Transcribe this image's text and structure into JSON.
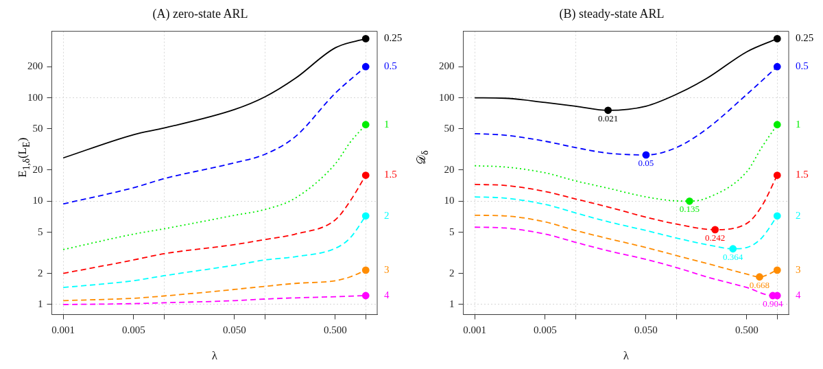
{
  "chart_data": [
    {
      "type": "line",
      "title": "(A) zero-state ARL",
      "xlabel": "λ",
      "ylabel": "E$_{1,δ}$(L$_{E}$)",
      "log": "xy",
      "grid": true,
      "legend": false,
      "xlim": [
        0.00077,
        1.3
      ],
      "ylim": [
        0.8,
        440
      ],
      "xticks": [
        {
          "value": 0.001,
          "label": "0.001"
        },
        {
          "value": 0.005,
          "label": "0.005"
        },
        {
          "value": 0.01,
          "label": null
        },
        {
          "value": 0.05,
          "label": "0.050"
        },
        {
          "value": 0.1,
          "label": null
        },
        {
          "value": 0.5,
          "label": "0.500"
        },
        {
          "value": 1,
          "label": null
        }
      ],
      "yticks": [
        1,
        2,
        5,
        10,
        20,
        50,
        100,
        200
      ],
      "series": [
        {
          "name": "0.25",
          "color": "#000000",
          "line_style": "solid",
          "marker": "none",
          "x": [
            0.001,
            0.005,
            0.01,
            0.05,
            0.1,
            0.2,
            0.5,
            1
          ],
          "values": [
            26.2,
            44,
            51,
            77,
            102,
            154,
            305,
            373
          ]
        },
        {
          "name": "0.5",
          "color": "#0000ff",
          "line_style": "dashed",
          "marker": "none",
          "x": [
            0.001,
            0.005,
            0.01,
            0.05,
            0.1,
            0.2,
            0.5,
            1
          ],
          "values": [
            9.4,
            13.5,
            16.5,
            23.5,
            28.4,
            42,
            111,
            200
          ]
        },
        {
          "name": "1",
          "color": "#00ee00",
          "line_style": "dotted",
          "marker": "none",
          "x": [
            0.001,
            0.005,
            0.01,
            0.05,
            0.1,
            0.2,
            0.5,
            0.7,
            1
          ],
          "values": [
            3.4,
            4.8,
            5.4,
            7.3,
            8.3,
            10.7,
            23,
            37,
            55
          ]
        },
        {
          "name": "1.5",
          "color": "#ff0000",
          "line_style": "dashed",
          "marker": "none",
          "x": [
            0.001,
            0.005,
            0.01,
            0.05,
            0.1,
            0.2,
            0.5,
            0.7,
            1
          ],
          "values": [
            2.0,
            2.7,
            3.1,
            3.8,
            4.25,
            4.8,
            6.6,
            10,
            17.8
          ]
        },
        {
          "name": "2",
          "color": "#00ffff",
          "line_style": "dashed",
          "marker": "none",
          "x": [
            0.001,
            0.005,
            0.01,
            0.05,
            0.1,
            0.2,
            0.5,
            0.7,
            1
          ],
          "values": [
            1.46,
            1.7,
            1.9,
            2.4,
            2.7,
            2.9,
            3.5,
            4.4,
            7.2
          ]
        },
        {
          "name": "3",
          "color": "#ff8c00",
          "line_style": "dashed",
          "marker": "none",
          "x": [
            0.001,
            0.005,
            0.01,
            0.05,
            0.1,
            0.2,
            0.5,
            0.7,
            1
          ],
          "values": [
            1.09,
            1.15,
            1.21,
            1.4,
            1.5,
            1.6,
            1.7,
            1.85,
            2.15
          ]
        },
        {
          "name": "4",
          "color": "#ff00ff",
          "line_style": "dashed",
          "marker": "none",
          "x": [
            0.001,
            0.005,
            0.01,
            0.05,
            0.1,
            0.2,
            0.5,
            1
          ],
          "values": [
            1.0,
            1.02,
            1.04,
            1.09,
            1.13,
            1.16,
            1.19,
            1.22
          ]
        },
        {
          "type": "scatter",
          "color": "#000000",
          "marker": "circle",
          "x": [
            1
          ],
          "values": [
            373
          ]
        },
        {
          "type": "scatter",
          "color": "#0000ff",
          "marker": "circle",
          "x": [
            1
          ],
          "values": [
            200
          ]
        },
        {
          "type": "scatter",
          "color": "#00ee00",
          "marker": "circle",
          "x": [
            1
          ],
          "values": [
            55
          ]
        },
        {
          "type": "scatter",
          "color": "#ff0000",
          "marker": "circle",
          "x": [
            1
          ],
          "values": [
            17.8
          ]
        },
        {
          "type": "scatter",
          "color": "#00ffff",
          "marker": "circle",
          "x": [
            1
          ],
          "values": [
            7.2
          ]
        },
        {
          "type": "scatter",
          "color": "#ff8c00",
          "marker": "circle",
          "x": [
            1
          ],
          "values": [
            2.15
          ]
        },
        {
          "type": "scatter",
          "color": "#ff00ff",
          "marker": "circle",
          "x": [
            1
          ],
          "values": [
            1.22
          ]
        }
      ]
    },
    {
      "type": "line",
      "title": "(B) steady-state ARL",
      "xlabel": "λ",
      "ylabel": "𝒟$_{δ}$",
      "log": "xy",
      "grid": true,
      "legend": false,
      "xlim": [
        0.00077,
        1.3
      ],
      "ylim": [
        0.8,
        440
      ],
      "xticks": [
        {
          "value": 0.001,
          "label": "0.001"
        },
        {
          "value": 0.005,
          "label": "0.005"
        },
        {
          "value": 0.01,
          "label": null
        },
        {
          "value": 0.05,
          "label": "0.050"
        },
        {
          "value": 0.1,
          "label": null
        },
        {
          "value": 0.5,
          "label": "0.500"
        },
        {
          "value": 1,
          "label": null
        }
      ],
      "yticks": [
        1,
        2,
        5,
        10,
        20,
        50,
        100,
        200
      ],
      "series": [
        {
          "name": "0.25",
          "color": "#000000",
          "line_style": "solid",
          "marker": "none",
          "x": [
            0.001,
            0.002,
            0.005,
            0.01,
            0.021,
            0.05,
            0.1,
            0.2,
            0.5,
            1
          ],
          "values": [
            100,
            99,
            90,
            83,
            75.7,
            83,
            108,
            154,
            279,
            373
          ]
        },
        {
          "name": "0.5",
          "color": "#0000ff",
          "line_style": "dashed",
          "marker": "none",
          "x": [
            0.001,
            0.002,
            0.005,
            0.01,
            0.02,
            0.05,
            0.1,
            0.2,
            0.5,
            1
          ],
          "values": [
            45,
            43.5,
            38,
            33,
            29.3,
            28,
            33,
            50,
            108,
            200
          ]
        },
        {
          "name": "1",
          "color": "#00ee00",
          "line_style": "dotted",
          "marker": "none",
          "x": [
            0.001,
            0.002,
            0.005,
            0.01,
            0.02,
            0.05,
            0.1,
            0.135,
            0.2,
            0.5,
            0.7,
            1
          ],
          "values": [
            22,
            21.4,
            18.8,
            15.7,
            13.5,
            11,
            10.05,
            10,
            10.7,
            19.3,
            33,
            55
          ]
        },
        {
          "name": "1.5",
          "color": "#ff0000",
          "line_style": "dashed",
          "marker": "none",
          "x": [
            0.001,
            0.002,
            0.005,
            0.01,
            0.02,
            0.05,
            0.1,
            0.242,
            0.5,
            0.7,
            1
          ],
          "values": [
            14.5,
            14.2,
            12.4,
            10.5,
            8.9,
            7.0,
            6.0,
            5.3,
            6.1,
            8.9,
            17.8
          ]
        },
        {
          "name": "2",
          "color": "#00ffff",
          "line_style": "dashed",
          "marker": "none",
          "x": [
            0.001,
            0.002,
            0.005,
            0.01,
            0.02,
            0.05,
            0.1,
            0.2,
            0.364,
            0.5,
            0.7,
            1
          ],
          "values": [
            11,
            10.7,
            9.3,
            7.7,
            6.4,
            5.2,
            4.4,
            3.8,
            3.46,
            3.56,
            4.4,
            7.2
          ]
        },
        {
          "name": "3",
          "color": "#ff8c00",
          "line_style": "dashed",
          "marker": "none",
          "x": [
            0.001,
            0.002,
            0.005,
            0.01,
            0.02,
            0.05,
            0.1,
            0.2,
            0.5,
            0.668,
            1
          ],
          "values": [
            7.3,
            7.2,
            6.3,
            5.2,
            4.4,
            3.56,
            2.98,
            2.5,
            1.97,
            1.85,
            2.15
          ]
        },
        {
          "name": "4",
          "color": "#ff00ff",
          "line_style": "dashed",
          "marker": "none",
          "x": [
            0.001,
            0.002,
            0.005,
            0.01,
            0.02,
            0.05,
            0.1,
            0.2,
            0.5,
            0.904,
            1
          ],
          "values": [
            5.6,
            5.5,
            4.8,
            4.0,
            3.35,
            2.73,
            2.28,
            1.85,
            1.46,
            1.22,
            1.22
          ]
        },
        {
          "type": "scatter",
          "color": "#000000",
          "marker": "circle",
          "x": [
            0.021,
            1
          ],
          "values": [
            75.7,
            373
          ]
        },
        {
          "type": "scatter",
          "color": "#0000ff",
          "marker": "circle",
          "x": [
            0.05,
            1
          ],
          "values": [
            28,
            200
          ]
        },
        {
          "type": "scatter",
          "color": "#00ee00",
          "marker": "circle",
          "x": [
            0.135,
            1
          ],
          "values": [
            10,
            55
          ]
        },
        {
          "type": "scatter",
          "color": "#ff0000",
          "marker": "circle",
          "x": [
            0.242,
            1
          ],
          "values": [
            5.3,
            17.8
          ]
        },
        {
          "type": "scatter",
          "color": "#00ffff",
          "marker": "circle",
          "x": [
            0.364,
            1
          ],
          "values": [
            3.46,
            7.2
          ]
        },
        {
          "type": "scatter",
          "color": "#ff8c00",
          "marker": "circle",
          "x": [
            0.668,
            1
          ],
          "values": [
            1.85,
            2.15
          ]
        },
        {
          "type": "scatter",
          "color": "#ff00ff",
          "marker": "circle",
          "x": [
            0.904,
            1
          ],
          "values": [
            1.22,
            1.22
          ]
        }
      ],
      "annotations": [
        {
          "text": "0.021",
          "x": 0.021,
          "y": 75.7
        },
        {
          "text": "0.05",
          "x": 0.05,
          "y": 28
        },
        {
          "text": "0.135",
          "x": 0.135,
          "y": 10
        },
        {
          "text": "0.242",
          "x": 0.242,
          "y": 5.3
        },
        {
          "text": "0.364",
          "x": 0.364,
          "y": 3.46
        },
        {
          "text": "0.668",
          "x": 0.668,
          "y": 1.85
        },
        {
          "text": "0.904",
          "x": 0.904,
          "y": 1.22
        }
      ]
    }
  ]
}
